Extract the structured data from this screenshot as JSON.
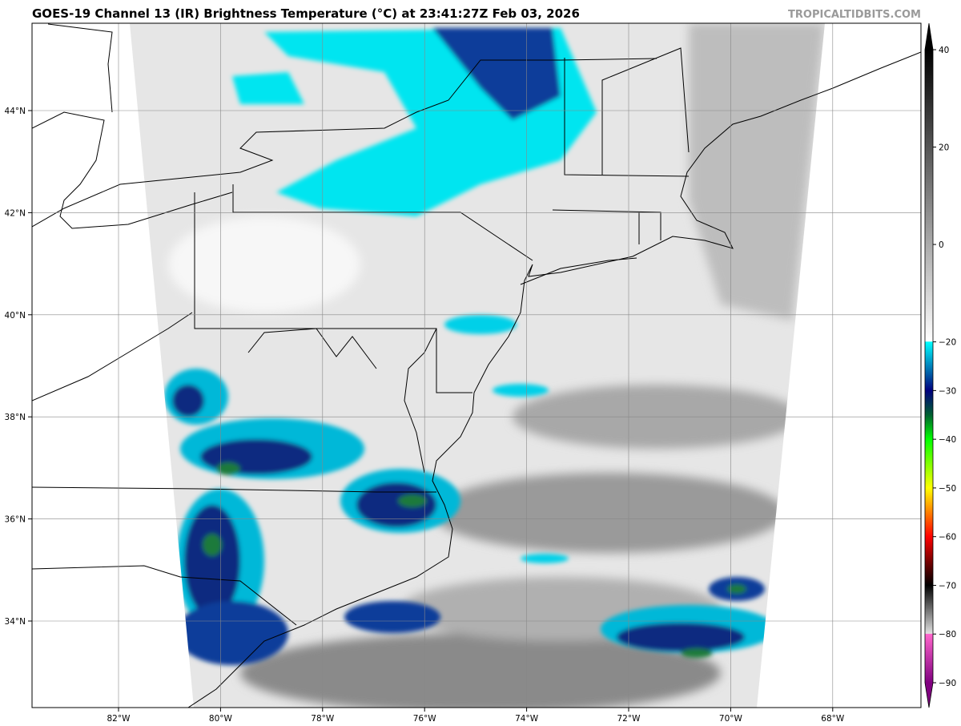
{
  "title": "GOES-19 Channel 13 (IR) Brightness Temperature (°C) at 23:41:27Z Feb 03, 2026",
  "brand": "TROPICALTIDBITS.COM",
  "map": {
    "longitude_labels": [
      "82°W",
      "80°W",
      "78°W",
      "76°W",
      "74°W",
      "72°W",
      "70°W",
      "68°W"
    ],
    "longitude_values": [
      -82,
      -80,
      -78,
      -76,
      -74,
      -72,
      -70,
      -68
    ],
    "latitude_labels": [
      "44°N",
      "42°N",
      "40°N",
      "38°N",
      "36°N",
      "34°N"
    ],
    "latitude_values": [
      44,
      42,
      40,
      38,
      36,
      34
    ],
    "region": "US Mid-Atlantic / Northeast"
  },
  "colorbar": {
    "range": [
      -90,
      40
    ],
    "tick_labels": [
      "40",
      "20",
      "0",
      "−20",
      "−30",
      "−40",
      "−50",
      "−60",
      "−70",
      "−80",
      "−90"
    ],
    "tick_values": [
      40,
      20,
      0,
      -20,
      -30,
      -40,
      -50,
      -60,
      -70,
      -80,
      -90
    ],
    "stops": [
      {
        "value": 40,
        "color": "#000000"
      },
      {
        "value": -19.9,
        "color": "#ffffff"
      },
      {
        "value": -20,
        "color": "#00ffff"
      },
      {
        "value": -27,
        "color": "#0050a0"
      },
      {
        "value": -30,
        "color": "#000080"
      },
      {
        "value": -35,
        "color": "#006030"
      },
      {
        "value": -40,
        "color": "#00ff00"
      },
      {
        "value": -50,
        "color": "#ffff00"
      },
      {
        "value": -55,
        "color": "#ff8000"
      },
      {
        "value": -60,
        "color": "#ff0000"
      },
      {
        "value": -66,
        "color": "#600000"
      },
      {
        "value": -70,
        "color": "#000000"
      },
      {
        "value": -79.9,
        "color": "#e0e0e0"
      },
      {
        "value": -80,
        "color": "#ff66cc"
      },
      {
        "value": -90,
        "color": "#800080"
      }
    ]
  }
}
